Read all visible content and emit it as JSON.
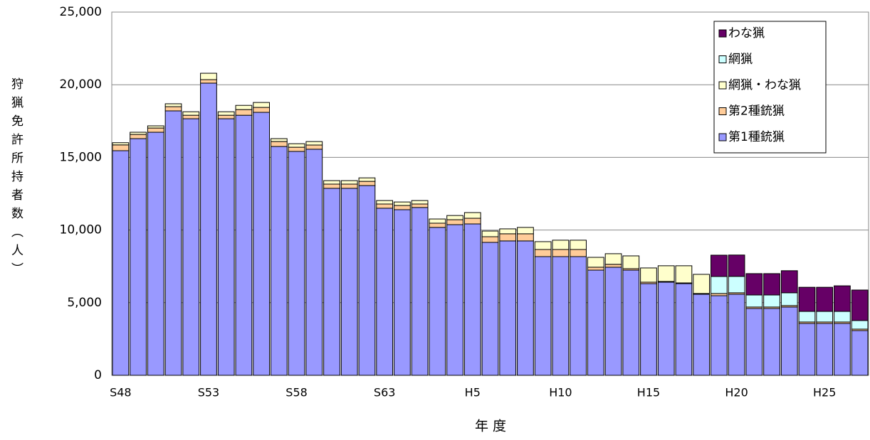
{
  "chart_data": {
    "type": "stacked-bar",
    "y_label": "狩猟免許所持者数（人）",
    "x_label": "年 度",
    "categories": [
      "S48",
      null,
      null,
      null,
      null,
      "S53",
      null,
      null,
      null,
      null,
      "S58",
      null,
      null,
      null,
      null,
      "S63",
      null,
      null,
      null,
      null,
      "H5",
      null,
      null,
      null,
      null,
      "H10",
      null,
      null,
      null,
      null,
      "H15",
      null,
      null,
      null,
      null,
      "H20",
      null,
      null,
      null,
      null,
      "H25",
      null,
      null
    ],
    "series": [
      {
        "name": "第1種銃猟",
        "color": "#9999ff",
        "values": [
          15460,
          16290,
          16730,
          18200,
          17660,
          20110,
          17660,
          17900,
          18100,
          15750,
          15410,
          15560,
          12870,
          12870,
          13060,
          11500,
          11400,
          11550,
          10180,
          10370,
          10420,
          9150,
          9250,
          9250,
          8170,
          8170,
          8170,
          7240,
          7440,
          7240,
          6310,
          6410,
          6310,
          5580,
          5480,
          5580,
          4600,
          4600,
          4700,
          3570,
          3570,
          3570,
          3080
        ]
      },
      {
        "name": "第2種銃猟",
        "color": "#ffcc99",
        "values": [
          400,
          290,
          290,
          290,
          240,
          240,
          240,
          390,
          340,
          340,
          290,
          290,
          290,
          290,
          290,
          290,
          290,
          240,
          290,
          340,
          390,
          390,
          490,
          490,
          490,
          490,
          490,
          200,
          200,
          100,
          100,
          50,
          50,
          50,
          150,
          100,
          100,
          100,
          100,
          100,
          100,
          100,
          100
        ]
      },
      {
        "name": "網猟・わな猟",
        "color": "#ffffcc",
        "values": [
          150,
          150,
          150,
          200,
          240,
          440,
          240,
          290,
          340,
          200,
          240,
          240,
          240,
          240,
          240,
          240,
          240,
          240,
          290,
          290,
          390,
          390,
          340,
          440,
          540,
          640,
          640,
          680,
          730,
          880,
          980,
          1080,
          1180,
          1320,
          null,
          null,
          null,
          null,
          null,
          null,
          null,
          null,
          null
        ]
      },
      {
        "name": "網猟",
        "color": "#ccffff",
        "values": [
          null,
          null,
          null,
          null,
          null,
          null,
          null,
          null,
          null,
          null,
          null,
          null,
          null,
          null,
          null,
          null,
          null,
          null,
          null,
          null,
          null,
          null,
          null,
          null,
          null,
          null,
          null,
          null,
          null,
          null,
          null,
          null,
          null,
          null,
          1170,
          1130,
          830,
          830,
          880,
          730,
          730,
          730,
          590
        ]
      },
      {
        "name": "わな猟",
        "color": "#660066",
        "values": [
          null,
          null,
          null,
          null,
          null,
          null,
          null,
          null,
          null,
          null,
          null,
          null,
          null,
          null,
          null,
          null,
          null,
          null,
          null,
          null,
          null,
          null,
          null,
          null,
          null,
          null,
          null,
          null,
          null,
          null,
          null,
          null,
          null,
          null,
          1470,
          1470,
          1470,
          1470,
          1520,
          1660,
          1660,
          1760,
          2100
        ]
      }
    ],
    "ylim": [
      0,
      25000
    ],
    "yticks": [
      0,
      {
        "value": 5000,
        "label": "5,000"
      },
      {
        "value": 10000,
        "label": "10,000"
      },
      {
        "value": 15000,
        "label": "15,000"
      },
      {
        "value": 20000,
        "label": "20,000"
      },
      {
        "value": 25000,
        "label": "25,000"
      }
    ],
    "grid": true,
    "legend": "upper-right"
  }
}
